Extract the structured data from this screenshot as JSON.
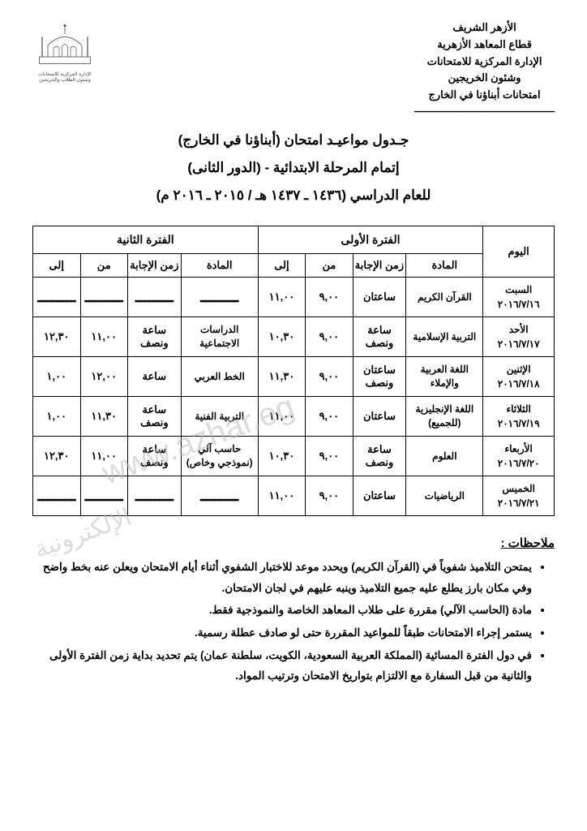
{
  "header": {
    "lines": [
      "الأزهر الشريف",
      "قطاع المعاهد الأزهرية",
      "الإدارة المركزية للامتحانات",
      "وشئون الخريجين",
      "امتحانات أبناؤنا في الخارج"
    ],
    "divider": "ـــــــــــــــــــــــــــــــــــــــــــــــــــــــــــ"
  },
  "logo_caption": "الإدارة المركزية للامتحانات وشئون الطلاب والخريجين",
  "title": {
    "line1": "جـدول مواعيـد امتحان (أبناؤنا في الخارج)",
    "line2": "إتمام المرحلة الابتدائية - (الدور الثانى)",
    "line3": "للعام الدراسي (١٤٣٦ ـ ١٤٣٧ هـ / ٢٠١٥ ـ ٢٠١٦ م)"
  },
  "table": {
    "headers": {
      "day": "اليوم",
      "period1": "الفترة الأولى",
      "period2": "الفترة الثانية",
      "subject": "المادة",
      "duration": "زمن الإجابة",
      "from": "من",
      "to": "إلى"
    },
    "rows": [
      {
        "day": "السبت\n٢٠١٦/٧/١٦",
        "p1": {
          "subject": "القرآن الكريم",
          "duration": "ساعتان",
          "from": "٩,٠٠",
          "to": "١١,٠٠"
        },
        "p2": {
          "subject": "ــــــــ",
          "duration": "ــــــــ",
          "from": "ــــــــ",
          "to": "ــــــــ",
          "dash": true
        }
      },
      {
        "day": "الأحد\n٢٠١٦/٧/١٧",
        "p1": {
          "subject": "التربية الإسلامية",
          "duration": "ساعة ونصف",
          "from": "٩,٠٠",
          "to": "١٠,٣٠"
        },
        "p2": {
          "subject": "الدراسات الاجتماعية",
          "duration": "ساعة ونصف",
          "from": "١١,٠٠",
          "to": "١٢,٣٠"
        }
      },
      {
        "day": "الإثنين\n٢٠١٦/٧/١٨",
        "p1": {
          "subject": "اللغة العربية والإملاء",
          "duration": "ساعتان ونصف",
          "from": "٩,٠٠",
          "to": "١١,٣٠"
        },
        "p2": {
          "subject": "الخط العربي",
          "duration": "ساعة",
          "from": "١٢,٠٠",
          "to": "١,٠٠"
        }
      },
      {
        "day": "الثلاثاء\n٢٠١٦/٧/١٩",
        "p1": {
          "subject": "اللغة الإنجليزية (للجميع)",
          "duration": "ساعتان",
          "from": "٩,٠٠",
          "to": "١١,٠٠"
        },
        "p2": {
          "subject": "التربية الفنية",
          "duration": "ساعة ونصف",
          "from": "١١,٣٠",
          "to": "١,٠٠"
        }
      },
      {
        "day": "الأربعاء\n٢٠١٦/٧/٢٠",
        "p1": {
          "subject": "العلوم",
          "duration": "ساعة ونصف",
          "from": "٩,٠٠",
          "to": "١٠,٣٠"
        },
        "p2": {
          "subject": "حاسب آلي (نموذجي وخاص)",
          "duration": "ساعة ونصف",
          "from": "١١,٠٠",
          "to": "١٢,٣٠"
        }
      },
      {
        "day": "الخميس\n٢٠١٦/٧/٢١",
        "p1": {
          "subject": "الرياضيات",
          "duration": "ساعتان",
          "from": "٩,٠٠",
          "to": "١١,٠٠"
        },
        "p2": {
          "subject": "ــــــــ",
          "duration": "ــــــــ",
          "from": "ــــــــ",
          "to": "ــــــــ",
          "dash": true
        }
      }
    ]
  },
  "notes": {
    "title": "ملاحظات :",
    "items": [
      "يمتحن التلاميذ شفوياً في (القرآن الكريم) ويحدد موعد للاختبار الشفوي أثناء أيام الامتحان ويعلن عنه بخط واضح وفي مكان بارز يطلع عليه جميع التلاميذ وينبه عليهم في لجان الامتحان.",
      "مادة (الحاسب الآلي) مقررة على طلاب المعاهد الخاصة والنموذجية فقط.",
      "يستمر إجراء الامتحانات طبقاً للمواعيد المقررة حتى لو صادف عطلة رسمية.",
      "في دول الفترة المسائية (المملكة العربية السعودية، الكويت، سلطنة عمان) يتم تحديد بداية زمن الفترة الأولى والثانية من قبل السفارة مع الالتزام بتواريخ الامتحان وترتيب المواد."
    ]
  },
  "watermark": "www.azhar.eg",
  "watermark2": "الإلكترونية",
  "colors": {
    "text": "#000000",
    "background": "#ffffff",
    "border": "#000000",
    "watermark": "#bbbbbb"
  }
}
